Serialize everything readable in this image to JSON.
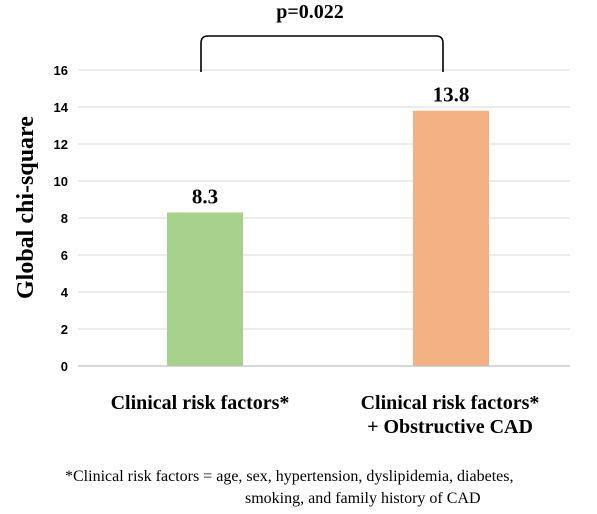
{
  "chart_data": {
    "type": "bar",
    "categories": [
      "Clinical risk factors*",
      "Clinical risk factors*\n+ Obstructive CAD"
    ],
    "category_lines": [
      [
        "Clinical risk factors*"
      ],
      [
        "Clinical risk factors*",
        "+ Obstructive CAD"
      ]
    ],
    "values": [
      8.3,
      13.8
    ],
    "data_labels": [
      "8.3",
      "13.8"
    ],
    "bar_colors": [
      "#a9d18e",
      "#f4b183"
    ],
    "ylabel": "Global chi-square",
    "xlabel": "",
    "ylim": [
      0,
      16
    ],
    "yticks": [
      0,
      2,
      4,
      6,
      8,
      10,
      12,
      14,
      16
    ],
    "grid": true,
    "annotation": "p=0.022",
    "footnote_lines": [
      "*Clinical risk factors = age, sex, hypertension, dyslipidemia, diabetes,",
      "smoking, and family history of CAD"
    ]
  }
}
